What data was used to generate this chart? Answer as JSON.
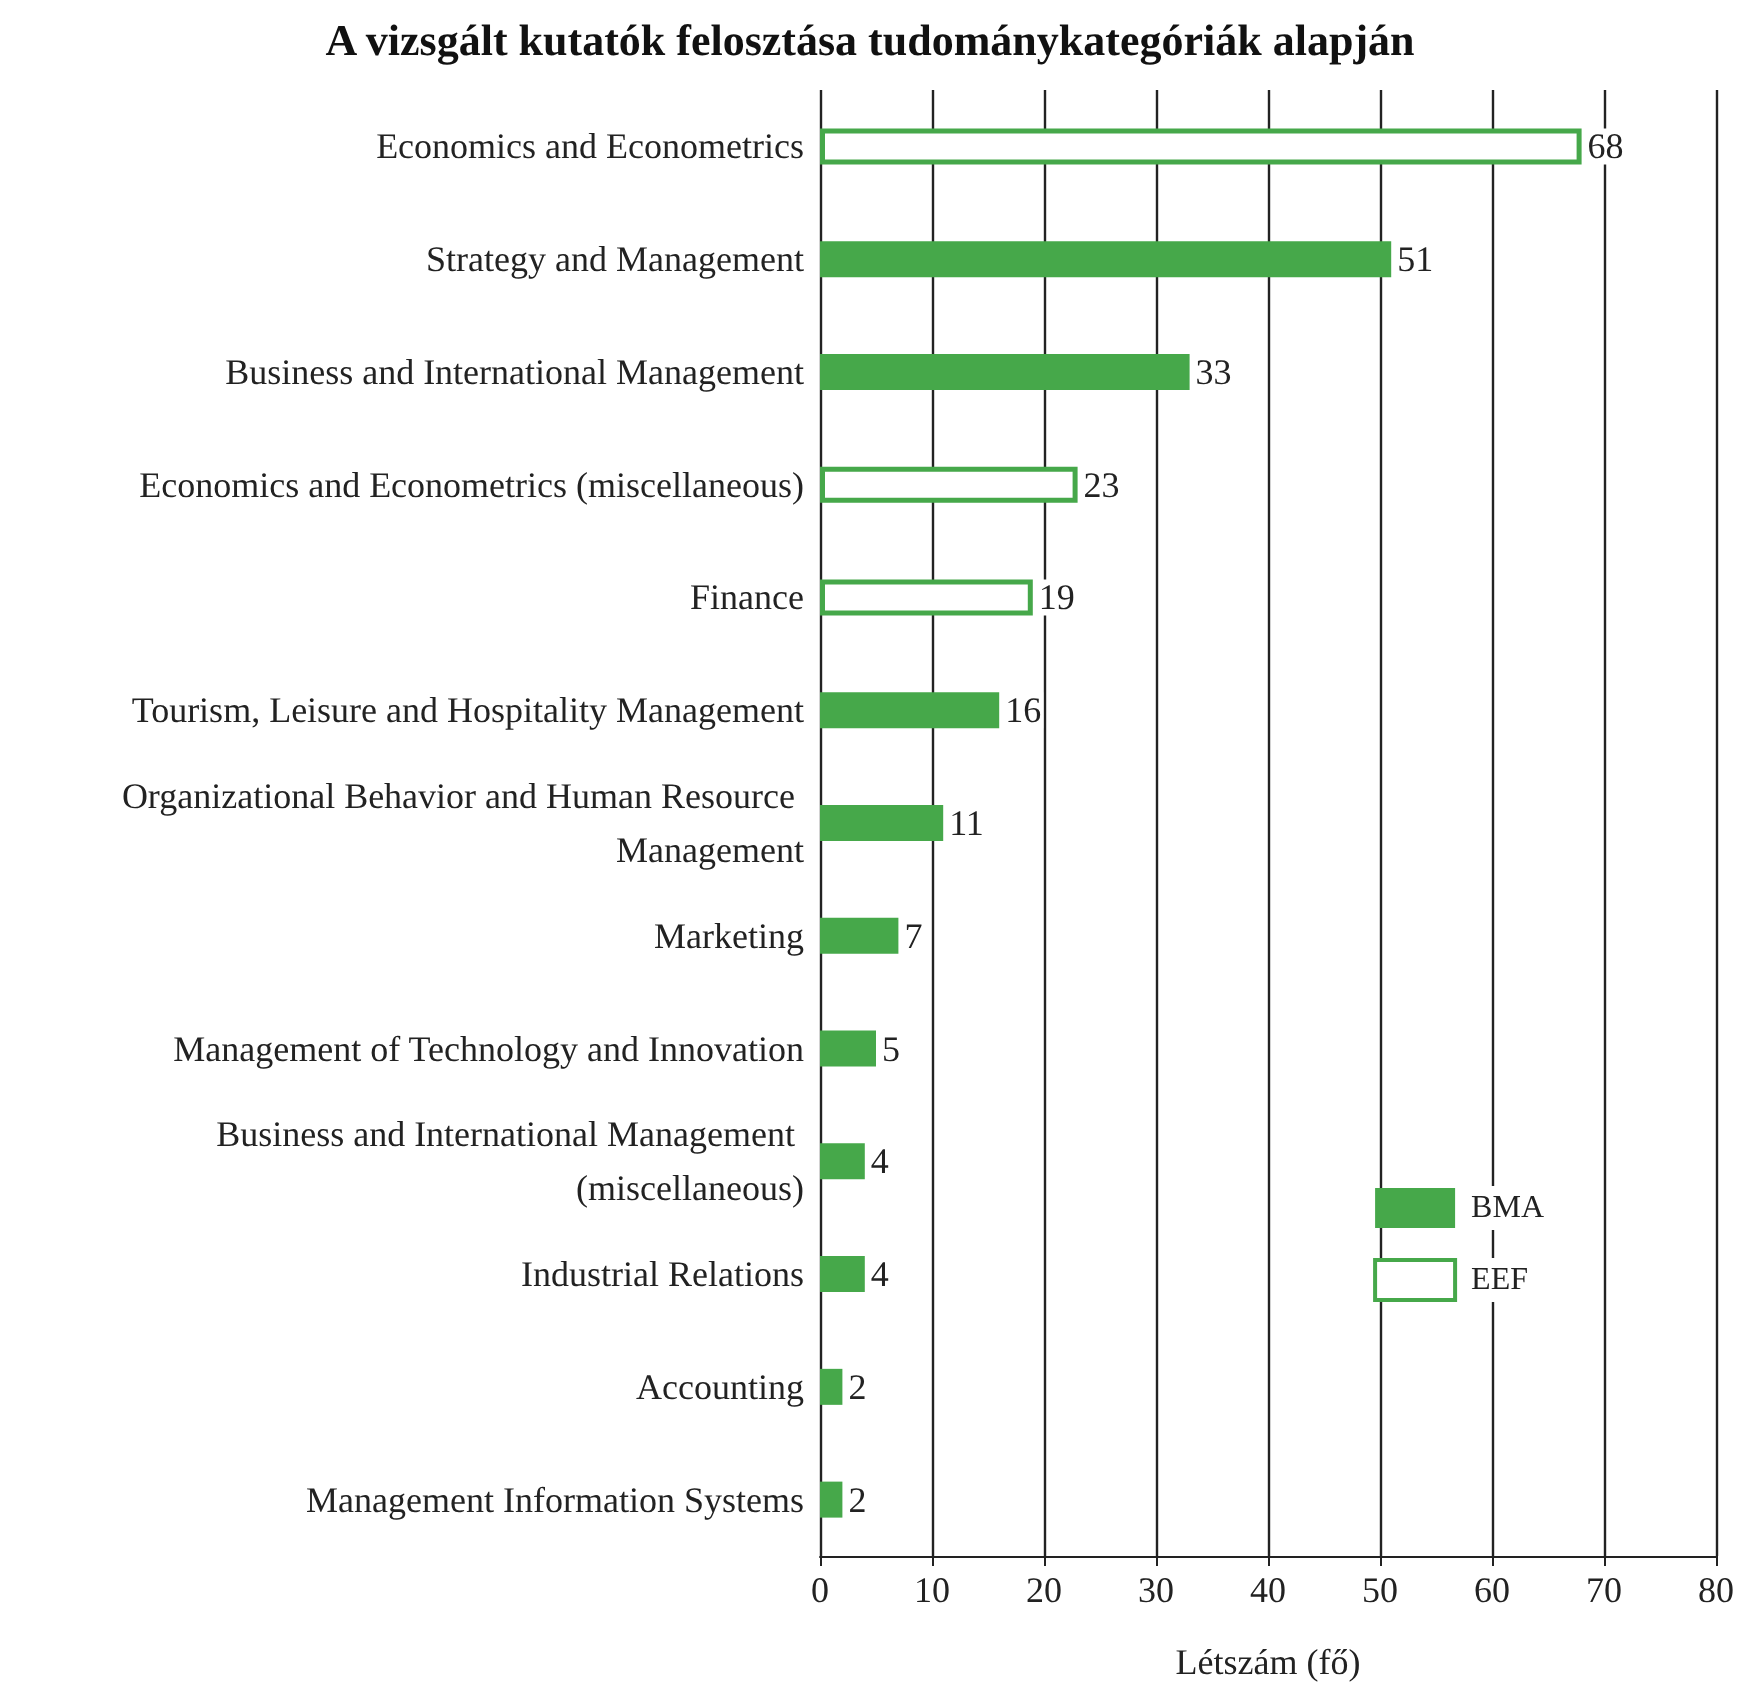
{
  "chart_data": {
    "type": "bar",
    "orientation": "horizontal",
    "stacked": true,
    "title": "A vizsgált kutatók felosztása tudománykategóriák alapján",
    "xlabel": "Létszám (fő)",
    "categories": [
      "Economics and Econometrics",
      "Strategy and Management",
      "Business and International Management",
      "Economics and Econometrics (miscellaneous)",
      "Finance",
      "Tourism, Leisure and Hospitality Management",
      "Organizational Behavior and Human Resource Management",
      "Marketing",
      "Management of Technology and Innovation",
      "Business and International Management (miscellaneous)",
      "Industrial Relations",
      "Accounting",
      "Management Information Systems"
    ],
    "series": [
      {
        "name": "BMA",
        "color": "#46a84a",
        "values": [
          null,
          51,
          33,
          null,
          null,
          16,
          11,
          7,
          5,
          4,
          4,
          2,
          2
        ]
      },
      {
        "name": "EEF",
        "color": "#46a84a",
        "values": [
          68,
          null,
          null,
          23,
          19,
          null,
          null,
          null,
          null,
          null,
          null,
          null,
          null
        ]
      }
    ],
    "xlim": [
      0,
      80
    ],
    "xticks": [
      0,
      10,
      20,
      30,
      40,
      50,
      60,
      70,
      80
    ],
    "grid": "x",
    "legend": "bottom right",
    "data_labels": true
  }
}
